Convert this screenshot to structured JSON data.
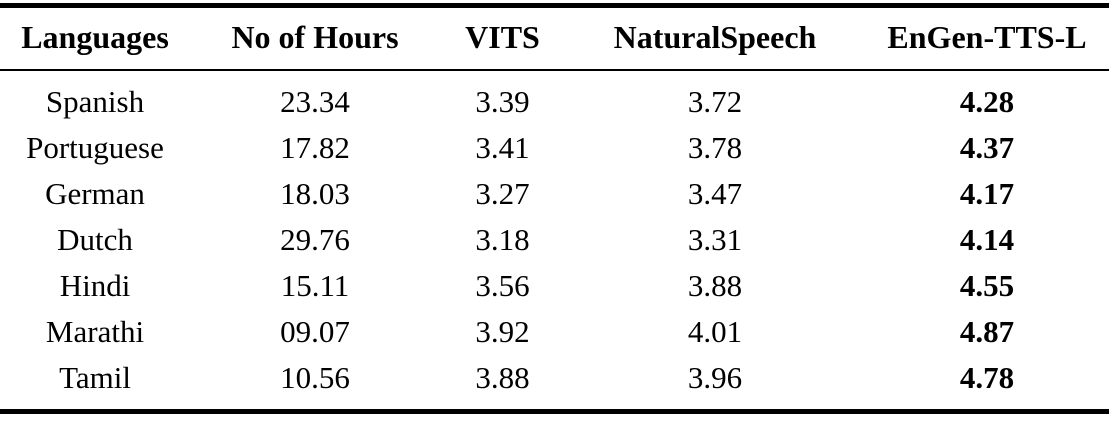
{
  "table": {
    "description": "TTS MOS comparison table",
    "headers": [
      "Languages",
      "No of Hours",
      "VITS",
      "NaturalSpeech",
      "EnGen-TTS-L"
    ],
    "rows": [
      [
        "Spanish",
        "23.34",
        "3.39",
        "3.72",
        "4.28"
      ],
      [
        "Portuguese",
        "17.82",
        "3.41",
        "3.78",
        "4.37"
      ],
      [
        "German",
        "18.03",
        "3.27",
        "3.47",
        "4.17"
      ],
      [
        "Dutch",
        "29.76",
        "3.18",
        "3.31",
        "4.14"
      ],
      [
        "Hindi",
        "15.11",
        "3.56",
        "3.88",
        "4.55"
      ],
      [
        "Marathi",
        "09.07",
        "3.92",
        "4.01",
        "4.87"
      ],
      [
        "Tamil",
        "10.56",
        "3.88",
        "3.96",
        "4.78"
      ]
    ],
    "bold_column_index": 4,
    "colors": {
      "text": "#000000",
      "rule": "#000000",
      "background": "#ffffff"
    }
  }
}
